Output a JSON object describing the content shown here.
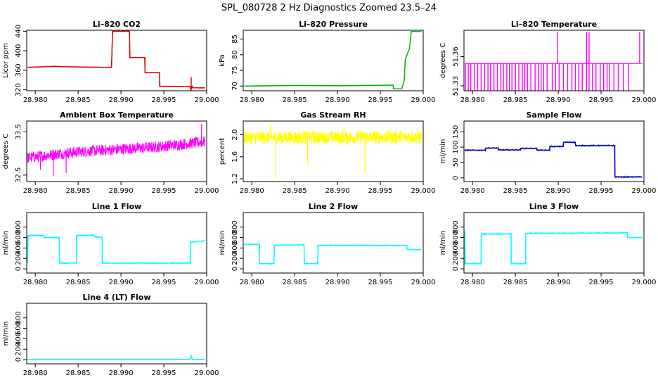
{
  "figure": {
    "title": "SPL_080728  2 Hz Diagnostics Zoomed 23.5–24"
  },
  "chart_data": [
    {
      "type": "line",
      "title": "Li–820 CO2",
      "ylabel": "Licor ppm",
      "color": "#e00000",
      "noise": 0.6,
      "xlim": [
        28.979,
        29.0
      ],
      "ylim": [
        318,
        442
      ],
      "xticks": [
        "28.980",
        "28.985",
        "28.990",
        "28.995",
        "29.000"
      ],
      "yticks": [
        "320",
        "360",
        "400",
        "440"
      ],
      "series": [
        {
          "x": [
            28.9791,
            28.9822,
            28.9845,
            28.9881,
            28.9889,
            28.98901,
            28.991,
            28.99101,
            28.9928,
            28.99281,
            28.9945,
            28.99451,
            28.9981,
            28.99811,
            28.9983,
            28.99831,
            28.9998
          ],
          "y": [
            366,
            368,
            367,
            366,
            366,
            440,
            440,
            386,
            386,
            355,
            355,
            327,
            327,
            322,
            327,
            324,
            324
          ]
        }
      ],
      "spikes": [
        {
          "x": 28.9982,
          "y0": 318,
          "y1": 346
        }
      ]
    },
    {
      "type": "line",
      "title": "Li–820 Pressure",
      "ylabel": "kPa",
      "color": "#00b000",
      "noise": 0.05,
      "xlim": [
        28.979,
        29.0
      ],
      "ylim": [
        68.5,
        87.8
      ],
      "xticks": [
        "28.980",
        "28.985",
        "28.990",
        "28.995",
        "29.000"
      ],
      "yticks": [
        "70",
        "75",
        "80",
        "85"
      ],
      "series": [
        {
          "x": [
            28.9791,
            28.985,
            28.99,
            28.9965,
            28.99651,
            28.9975,
            28.9978,
            28.9979,
            28.9984,
            28.9986,
            28.9998
          ],
          "y": [
            70.0,
            70.2,
            70.1,
            70.3,
            69.1,
            69.1,
            72.0,
            78.5,
            82.0,
            87.4,
            87.4
          ]
        }
      ]
    },
    {
      "type": "spikes",
      "title": "Li–820 Temperature",
      "ylabel": "degrees C",
      "color": "#ff00ff",
      "xlim": [
        28.979,
        29.0
      ],
      "ylim": [
        51.325,
        51.387
      ],
      "xticks": [
        "28.980",
        "28.985",
        "28.990",
        "28.995",
        "29.000"
      ],
      "yticks": [
        "51.33",
        "51.36"
      ],
      "baseline": 51.353,
      "x_range": [
        28.9791,
        28.9998
      ],
      "down_to": 51.325,
      "up_to": 51.385,
      "down_x": [
        28.9792,
        28.9795,
        28.9798,
        28.9802,
        28.9806,
        28.981,
        28.9814,
        28.9818,
        28.9821,
        28.9825,
        28.9829,
        28.9833,
        28.9836,
        28.984,
        28.9843,
        28.9846,
        28.985,
        28.9854,
        28.9858,
        28.9861,
        28.9864,
        28.9868,
        28.9873,
        28.9877,
        28.988,
        28.9883,
        28.9887,
        28.9893,
        28.9897,
        28.9901,
        28.9906,
        28.9911,
        28.9916,
        28.992,
        28.9924,
        28.9928,
        28.9933,
        28.9936,
        28.994,
        28.9944,
        28.9949,
        28.9953,
        28.9957,
        28.996,
        28.9965,
        28.997,
        28.9976,
        28.9982
      ],
      "up_x": [
        28.9899,
        28.9933,
        28.9936,
        28.9995
      ]
    },
    {
      "type": "noise",
      "title": "Ambient Box Temperature",
      "ylabel": "degrees C",
      "color": "#ff00ff",
      "xlim": [
        28.979,
        29.0
      ],
      "ylim": [
        32.35,
        33.75
      ],
      "xticks": [
        "28.980",
        "28.985",
        "28.990",
        "28.995",
        "29.000"
      ],
      "yticks": [
        "32.5",
        "33.5"
      ],
      "x_range": [
        28.9791,
        28.9998
      ],
      "center": {
        "x": [
          28.9791,
          28.983,
          28.986,
          28.99,
          28.994,
          28.9998
        ],
        "y": [
          32.9,
          33.0,
          33.05,
          33.1,
          33.15,
          33.27
        ]
      },
      "amplitude": 0.13,
      "outliers": [
        {
          "x": 28.9821,
          "y": 32.47
        },
        {
          "x": 28.9836,
          "y": 32.55
        },
        {
          "x": 28.9994,
          "y": 33.68
        },
        {
          "x": 28.9806,
          "y": 32.62
        }
      ]
    },
    {
      "type": "noise",
      "title": "Gas Stream RH",
      "ylabel": "percent",
      "color": "#ffff00",
      "xlim": [
        28.979,
        29.0
      ],
      "ylim": [
        1.15,
        2.25
      ],
      "xticks": [
        "28.980",
        "28.985",
        "28.990",
        "28.995",
        "29.000"
      ],
      "yticks": [
        "1.2",
        "1.6",
        "2.0"
      ],
      "x_range": [
        28.9791,
        28.9998
      ],
      "center": {
        "x": [
          28.9791,
          28.9998
        ],
        "y": [
          1.95,
          1.96
        ]
      },
      "amplitude": 0.12,
      "outliers": [
        {
          "x": 28.9828,
          "y": 1.2
        },
        {
          "x": 28.9932,
          "y": 1.32
        },
        {
          "x": 28.9865,
          "y": 1.45
        },
        {
          "x": 28.9822,
          "y": 2.2
        }
      ]
    },
    {
      "type": "line",
      "title": "Sample Flow",
      "ylabel": "ml/min",
      "color": "#0000cc",
      "noise": 2,
      "xlim": [
        28.979,
        29.0
      ],
      "ylim": [
        -12,
        185
      ],
      "xticks": [
        "28.980",
        "28.985",
        "28.990",
        "28.995",
        "29.000"
      ],
      "yticks": [
        "0",
        "50",
        "100",
        "150"
      ],
      "series": [
        {
          "x": [
            28.9791,
            28.9815,
            28.98151,
            28.983,
            28.98301,
            28.9856,
            28.98561,
            28.9875,
            28.98751,
            28.989,
            28.98901,
            28.9906,
            28.99061,
            28.992,
            28.99201,
            28.9966,
            28.99661,
            28.9998
          ],
          "y": [
            90,
            90,
            97,
            97,
            91,
            91,
            96,
            96,
            90,
            90,
            102,
            102,
            116,
            116,
            105,
            105,
            3,
            3
          ]
        }
      ]
    },
    {
      "type": "line",
      "title": "Line 1 Flow",
      "ylabel": "ml/min",
      "color": "#00ffff",
      "noise": 12,
      "xlim": [
        28.979,
        29.0
      ],
      "ylim": [
        -80,
        1080
      ],
      "xticks": [
        "28.980",
        "28.985",
        "28.990",
        "28.995",
        "29.000"
      ],
      "yticks": [
        "0",
        "200",
        "400",
        "600",
        "800"
      ],
      "series": [
        {
          "x": [
            28.9791,
            28.97911,
            28.981,
            28.98101,
            28.9828,
            28.98281,
            28.9848,
            28.98481,
            28.9869,
            28.98691,
            28.9878,
            28.98781,
            28.9981,
            28.99811,
            28.9998
          ],
          "y": [
            120,
            640,
            640,
            600,
            600,
            110,
            110,
            640,
            640,
            610,
            610,
            110,
            110,
            510,
            540
          ]
        }
      ]
    },
    {
      "type": "line",
      "title": "Line 2 Flow",
      "ylabel": "ml/min",
      "color": "#00ffff",
      "noise": 10,
      "xlim": [
        28.979,
        29.0
      ],
      "ylim": [
        -80,
        1080
      ],
      "xticks": [
        "28.980",
        "28.985",
        "28.990",
        "28.995",
        "29.000"
      ],
      "yticks": [
        "0",
        "200",
        "400",
        "600",
        "800"
      ],
      "series": [
        {
          "x": [
            28.9791,
            28.9809,
            28.98091,
            28.9826,
            28.98261,
            28.9861,
            28.98611,
            28.9877,
            28.98771,
            28.9981,
            28.99811,
            28.9998
          ],
          "y": [
            470,
            470,
            100,
            100,
            450,
            460,
            100,
            100,
            450,
            445,
            370,
            370
          ]
        }
      ]
    },
    {
      "type": "line",
      "title": "Line 3 Flow",
      "ylabel": "ml/min",
      "color": "#00ffff",
      "noise": 12,
      "xlim": [
        28.979,
        29.0
      ],
      "ylim": [
        -80,
        1080
      ],
      "xticks": [
        "28.980",
        "28.985",
        "28.990",
        "28.995",
        "29.000"
      ],
      "yticks": [
        "0",
        "200",
        "400",
        "600",
        "800"
      ],
      "series": [
        {
          "x": [
            28.9791,
            28.97911,
            28.981,
            28.98101,
            28.9845,
            28.98451,
            28.9862,
            28.98621,
            28.9981,
            28.99811,
            28.9998
          ],
          "y": [
            720,
            100,
            100,
            670,
            670,
            100,
            100,
            680,
            690,
            600,
            600
          ]
        }
      ]
    },
    {
      "type": "line",
      "title": "Line 4 (LT) Flow",
      "ylabel": "ml/min",
      "color": "#00ffff",
      "noise": 3,
      "xlim": [
        28.979,
        29.0
      ],
      "ylim": [
        -80,
        1080
      ],
      "xticks": [
        "28.980",
        "28.985",
        "28.990",
        "28.995",
        "29.000"
      ],
      "yticks": [
        "0",
        "200",
        "400",
        "600",
        "800"
      ],
      "series": [
        {
          "x": [
            28.9791,
            28.9981,
            28.9982,
            28.9983,
            28.9998
          ],
          "y": [
            5,
            5,
            90,
            5,
            5
          ]
        }
      ]
    }
  ]
}
